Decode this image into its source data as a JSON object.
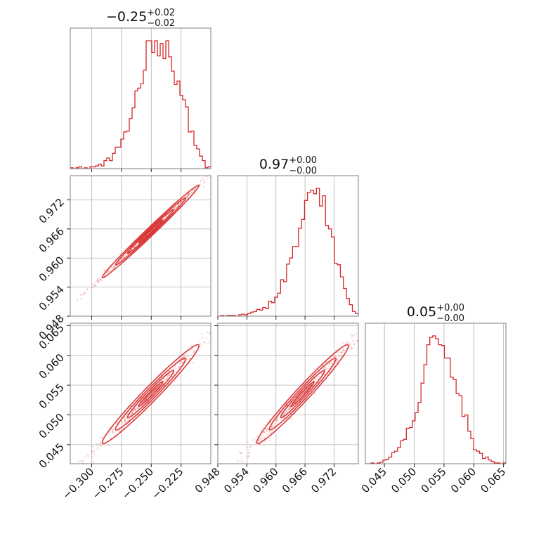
{
  "chart_data": {
    "type": "corner",
    "color": "#d62728",
    "parameters": [
      {
        "title": {
          "main": "−0.25",
          "sup": "+0.02",
          "sub": "−0.02"
        },
        "range": [
          -0.318,
          -0.2
        ],
        "ticks": [
          {
            "value": -0.3,
            "label": "−0.300"
          },
          {
            "value": -0.275,
            "label": "−0.275"
          },
          {
            "value": -0.25,
            "label": "−0.250"
          },
          {
            "value": -0.225,
            "label": "−0.225"
          }
        ],
        "histogram": [
          1,
          0,
          1,
          2,
          0,
          1,
          0,
          2,
          2,
          3,
          5,
          3,
          9,
          12,
          9,
          17,
          24,
          24,
          33,
          41,
          42,
          56,
          68,
          87,
          90,
          95,
          110,
          143,
          143,
          130,
          143,
          126,
          140,
          123,
          143,
          125,
          109,
          94,
          98,
          82,
          77,
          69,
          41,
          42,
          26,
          22,
          14,
          9,
          1,
          2
        ]
      },
      {
        "title": {
          "main": "0.97",
          "sup": "+0.00",
          "sub": "−0.00"
        },
        "range": [
          0.948,
          0.977
        ],
        "ticks": [
          {
            "value": 0.948,
            "label": "0.948"
          },
          {
            "value": 0.954,
            "label": "0.954"
          },
          {
            "value": 0.96,
            "label": "0.960"
          },
          {
            "value": 0.966,
            "label": "0.966"
          },
          {
            "value": 0.972,
            "label": "0.972"
          }
        ],
        "histogram": [
          0,
          1,
          0,
          1,
          1,
          1,
          0,
          2,
          3,
          2,
          4,
          6,
          7,
          10,
          9,
          13,
          11,
          22,
          20,
          28,
          34,
          54,
          51,
          77,
          86,
          103,
          103,
          130,
          143,
          171,
          183,
          186,
          181,
          189,
          163,
          178,
          134,
          129,
          117,
          78,
          76,
          58,
          41,
          26,
          17,
          7,
          4
        ]
      },
      {
        "title": {
          "main": "0.05",
          "sup": "+0.00",
          "sub": "−0.00"
        },
        "range": [
          0.0418,
          0.0654
        ],
        "ticks": [
          {
            "value": 0.045,
            "label": "0.045"
          },
          {
            "value": 0.05,
            "label": "0.050"
          },
          {
            "value": 0.055,
            "label": "0.055"
          },
          {
            "value": 0.06,
            "label": "0.060"
          },
          {
            "value": 0.065,
            "label": "0.065"
          }
        ],
        "histogram": [
          0,
          0,
          1,
          0,
          1,
          2,
          5,
          6,
          9,
          15,
          17,
          22,
          31,
          33,
          48,
          49,
          58,
          69,
          83,
          109,
          134,
          161,
          171,
          173,
          169,
          161,
          160,
          143,
          143,
          117,
          114,
          95,
          92,
          64,
          66,
          44,
          34,
          19,
          17,
          14,
          7,
          9,
          5,
          3,
          1,
          1,
          0,
          1
        ]
      }
    ],
    "pairs": [
      {
        "x_param": 0,
        "y_param": 1,
        "center": [
          -0.2505,
          0.9655
        ],
        "slope": 0.2333,
        "x_sd": 0.0185,
        "width_sd": 0.0004,
        "scatter_x_span": [
          -0.31,
          -0.2
        ]
      },
      {
        "x_param": 0,
        "y_param": 2,
        "center": [
          -0.2505,
          0.0535
        ],
        "slope": 0.2,
        "x_sd": 0.0185,
        "width_sd": 0.0006,
        "scatter_x_span": [
          -0.31,
          -0.2
        ]
      },
      {
        "x_param": 1,
        "y_param": 2,
        "center": [
          0.9655,
          0.0535
        ],
        "slope": 0.857,
        "x_sd": 0.0043,
        "width_sd": 0.0006,
        "scatter_x_span": [
          0.952,
          0.977
        ]
      }
    ],
    "grid": true
  }
}
